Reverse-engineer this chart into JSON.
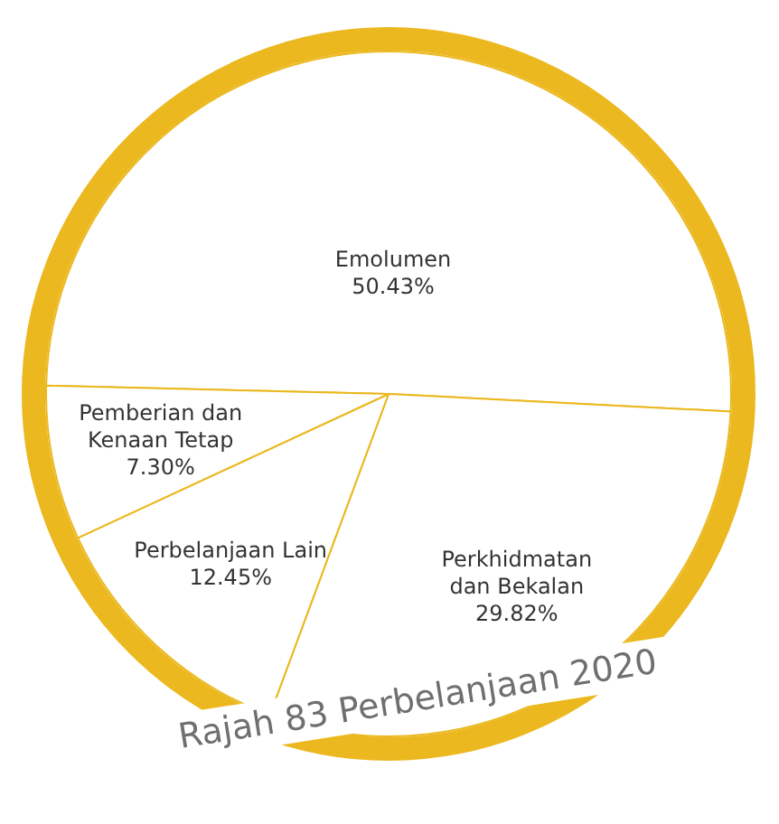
{
  "chart_data": {
    "type": "pie",
    "title": "Rajah 83 Perbelanjaan 2020",
    "categories": [
      "Emolumen",
      "Perkhidmatan\ndan Bekalan",
      "Perbelanjaan Lain",
      "Pemberian dan\nKenaan Tetap"
    ],
    "values": [
      50.43,
      29.82,
      12.45,
      7.3
    ],
    "value_labels": [
      "50.43%",
      "29.82%",
      "12.45%",
      "7.30%"
    ],
    "colors": [
      "#ffffff",
      "#ffffff",
      "#ffffff",
      "#ffffff"
    ],
    "legend": false
  }
}
